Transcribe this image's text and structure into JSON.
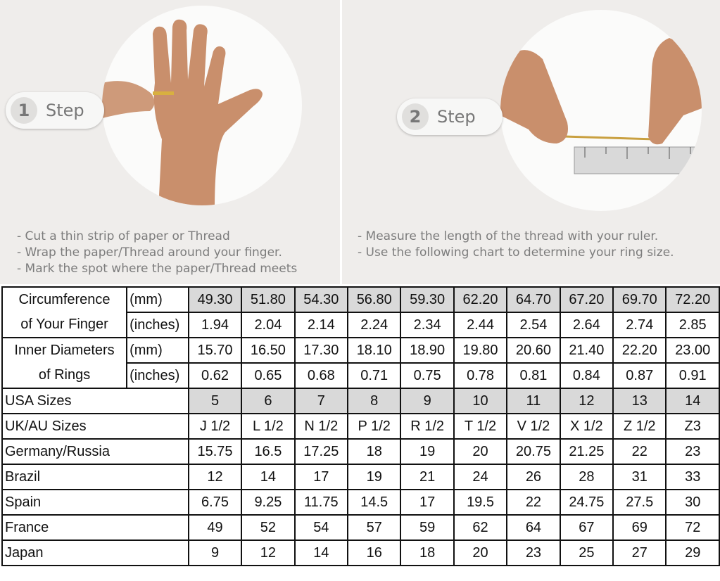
{
  "steps": [
    {
      "number": "1",
      "label": "Step",
      "instructions": [
        "Cut a thin strip of paper or Thread",
        "Wrap the paper/Thread around your finger.",
        "Mark the spot where the paper/Thread meets"
      ]
    },
    {
      "number": "2",
      "label": "Step",
      "instructions": [
        "Measure the length of the thread with your ruler.",
        "Use the following chart to determine your ring size."
      ]
    }
  ],
  "table": {
    "circumference": {
      "label_line1": "Circumference",
      "label_line2": "of Your Finger",
      "unit_mm": "(mm)",
      "unit_in": "(inches)",
      "mm": [
        "49.30",
        "51.80",
        "54.30",
        "56.80",
        "59.30",
        "62.20",
        "64.70",
        "67.20",
        "69.70",
        "72.20"
      ],
      "inches": [
        "1.94",
        "2.04",
        "2.14",
        "2.24",
        "2.34",
        "2.44",
        "2.54",
        "2.64",
        "2.74",
        "2.85"
      ]
    },
    "inner": {
      "label_line1": "Inner Diameters",
      "label_line2": "of Rings",
      "unit_mm": "(mm)",
      "unit_in": "(inches)",
      "mm": [
        "15.70",
        "16.50",
        "17.30",
        "18.10",
        "18.90",
        "19.80",
        "20.60",
        "21.40",
        "22.20",
        "23.00"
      ],
      "inches": [
        "0.62",
        "0.65",
        "0.68",
        "0.71",
        "0.75",
        "0.78",
        "0.81",
        "0.84",
        "0.87",
        "0.91"
      ]
    },
    "rows": [
      {
        "label": "USA Sizes",
        "values": [
          "5",
          "6",
          "7",
          "8",
          "9",
          "10",
          "11",
          "12",
          "13",
          "14"
        ]
      },
      {
        "label": "UK/AU Sizes",
        "values": [
          "J 1/2",
          "L 1/2",
          "N 1/2",
          "P 1/2",
          "R 1/2",
          "T 1/2",
          "V 1/2",
          "X 1/2",
          "Z 1/2",
          "Z3"
        ]
      },
      {
        "label": "Germany/Russia",
        "values": [
          "15.75",
          "16.5",
          "17.25",
          "18",
          "19",
          "20",
          "20.75",
          "21.25",
          "22",
          "23"
        ]
      },
      {
        "label": "Brazil",
        "values": [
          "12",
          "14",
          "17",
          "19",
          "21",
          "24",
          "26",
          "28",
          "31",
          "33"
        ]
      },
      {
        "label": "Spain",
        "values": [
          "6.75",
          "9.25",
          "11.75",
          "14.5",
          "17",
          "19.5",
          "22",
          "24.75",
          "27.5",
          "30"
        ]
      },
      {
        "label": "France",
        "values": [
          "49",
          "52",
          "54",
          "57",
          "59",
          "62",
          "64",
          "67",
          "69",
          "72"
        ]
      },
      {
        "label": "Japan",
        "values": [
          "9",
          "12",
          "14",
          "16",
          "18",
          "20",
          "23",
          "25",
          "27",
          "29"
        ]
      }
    ]
  },
  "colors": {
    "highlight": "#d9d9d9",
    "panel": "#efedeb"
  }
}
